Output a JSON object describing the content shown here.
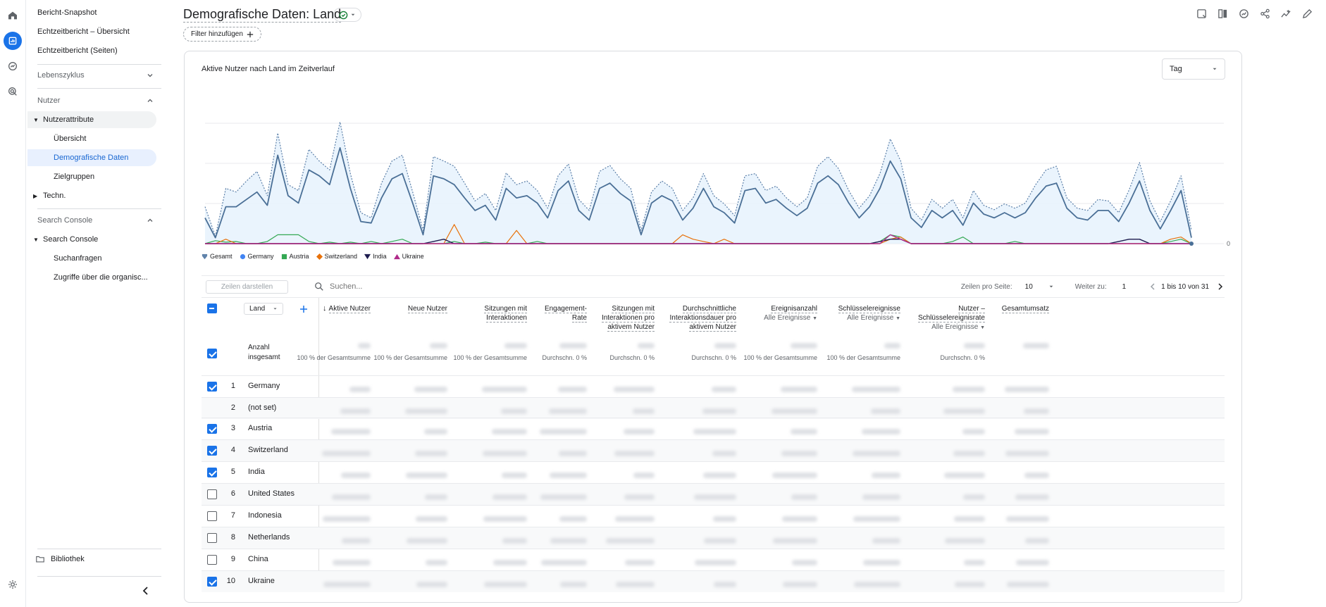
{
  "page": {
    "title": "Demografische Daten: Land",
    "filter_label": "Filter hinzufügen"
  },
  "rail": [
    {
      "icon": "home-icon"
    },
    {
      "icon": "reports-icon",
      "active": true
    },
    {
      "icon": "explore-icon"
    },
    {
      "icon": "advertising-icon"
    },
    {
      "icon": "settings-icon"
    }
  ],
  "sidebar": {
    "top_links": [
      "Bericht-Snapshot",
      "Echtzeitbericht – Übersicht",
      "Echtzeitbericht (Seiten)"
    ],
    "lifecycle": "Lebenszyklus",
    "users": "Nutzer",
    "user_attributes": "Nutzerattribute",
    "overview": "Übersicht",
    "demographics": "Demografische Daten",
    "audiences": "Zielgruppen",
    "tech": "Techn.",
    "search_console_section": "Search Console",
    "search_console": "Search Console",
    "queries": "Suchanfragen",
    "organic": "Zugriffe über die organisc...",
    "library": "Bibliothek"
  },
  "chart": {
    "title": "Aktive Nutzer nach Land im Zeitverlauf",
    "interval": "Tag",
    "y_zero_label": "0"
  },
  "chart_data": {
    "type": "line",
    "title": "Aktive Nutzer nach Land im Zeitverlauf",
    "note": "y-axis values are redacted in the screenshot; values are relative estimates",
    "series": [
      {
        "name": "Gesamt",
        "color": "#1a73e8"
      },
      {
        "name": "Germany",
        "color": "#4285f4"
      },
      {
        "name": "Austria",
        "color": "#34a853"
      },
      {
        "name": "Switzerland",
        "color": "#e8710a"
      },
      {
        "name": "India",
        "color": "#1e1c4f"
      },
      {
        "name": "Ukraine",
        "color": "#c5221f"
      }
    ],
    "gesamt": [
      50,
      10,
      75,
      70,
      85,
      98,
      65,
      150,
      80,
      72,
      128,
      112,
      100,
      165,
      95,
      42,
      35,
      82,
      112,
      120,
      70,
      18,
      118,
      112,
      105,
      82,
      58,
      68,
      45,
      96,
      80,
      85,
      72,
      48,
      92,
      108,
      60,
      45,
      98,
      106,
      88,
      75,
      18,
      70,
      85,
      75,
      45,
      62,
      95,
      65,
      54,
      38,
      92,
      95,
      72,
      78,
      62,
      50,
      62,
      105,
      118,
      102,
      72,
      48,
      65,
      95,
      142,
      112,
      48,
      32,
      60,
      48,
      60,
      35,
      72,
      52,
      46,
      54,
      48,
      55,
      80,
      100,
      105,
      62,
      48,
      45,
      60,
      58,
      42,
      73,
      110,
      58,
      30,
      58,
      92,
      18
    ],
    "germany": [
      35,
      8,
      50,
      50,
      60,
      70,
      52,
      120,
      65,
      55,
      100,
      92,
      80,
      130,
      75,
      30,
      28,
      62,
      88,
      95,
      55,
      12,
      92,
      88,
      80,
      62,
      45,
      52,
      32,
      75,
      62,
      65,
      55,
      35,
      72,
      85,
      45,
      32,
      75,
      82,
      68,
      58,
      12,
      55,
      65,
      58,
      32,
      48,
      75,
      50,
      42,
      28,
      72,
      75,
      55,
      60,
      48,
      38,
      48,
      82,
      92,
      80,
      55,
      35,
      50,
      75,
      112,
      88,
      35,
      22,
      45,
      35,
      45,
      25,
      55,
      40,
      35,
      42,
      35,
      42,
      62,
      78,
      82,
      48,
      35,
      32,
      45,
      45,
      30,
      55,
      85,
      45,
      20,
      45,
      72,
      8
    ],
    "austria": [
      0,
      4,
      2,
      3,
      0,
      0,
      3,
      12,
      12,
      12,
      3,
      0,
      2,
      0,
      2,
      0,
      3,
      0,
      3,
      6,
      0,
      0,
      0,
      0,
      3,
      0,
      0,
      2,
      0,
      0,
      0,
      0,
      3,
      0,
      0,
      0,
      0,
      0,
      0,
      0,
      0,
      0,
      0,
      0,
      0,
      0,
      0,
      0,
      0,
      0,
      0,
      0,
      0,
      0,
      0,
      0,
      0,
      0,
      0,
      0,
      0,
      0,
      0,
      0,
      0,
      3,
      12,
      9,
      0,
      0,
      0,
      0,
      3,
      9,
      0,
      0,
      0,
      0,
      3,
      0,
      0,
      0,
      0,
      0,
      0,
      0,
      0,
      0,
      0,
      0,
      0,
      0,
      0,
      3,
      6,
      0
    ],
    "switzerland": [
      0,
      0,
      6,
      0,
      0,
      0,
      0,
      0,
      0,
      0,
      0,
      0,
      0,
      0,
      0,
      0,
      0,
      0,
      0,
      0,
      0,
      0,
      0,
      0,
      26,
      0,
      0,
      0,
      0,
      0,
      18,
      0,
      0,
      0,
      0,
      0,
      0,
      0,
      0,
      0,
      0,
      0,
      0,
      0,
      0,
      0,
      12,
      6,
      3,
      0,
      6,
      0,
      0,
      0,
      0,
      0,
      0,
      0,
      0,
      0,
      0,
      0,
      0,
      0,
      0,
      0,
      6,
      9,
      0,
      0,
      0,
      0,
      0,
      0,
      0,
      0,
      0,
      0,
      0,
      0,
      0,
      0,
      0,
      0,
      0,
      0,
      0,
      0,
      0,
      0,
      0,
      0,
      0,
      6,
      9,
      0
    ],
    "india": [
      0,
      0,
      0,
      0,
      0,
      0,
      0,
      0,
      0,
      0,
      0,
      0,
      0,
      0,
      0,
      0,
      0,
      0,
      0,
      0,
      0,
      0,
      3,
      6,
      0,
      0,
      0,
      0,
      0,
      0,
      0,
      0,
      0,
      0,
      0,
      0,
      0,
      0,
      0,
      0,
      0,
      0,
      0,
      0,
      0,
      0,
      0,
      0,
      0,
      0,
      0,
      0,
      0,
      0,
      0,
      0,
      0,
      0,
      0,
      0,
      0,
      0,
      0,
      0,
      0,
      3,
      6,
      6,
      0,
      0,
      0,
      0,
      0,
      0,
      0,
      0,
      0,
      0,
      0,
      0,
      0,
      0,
      0,
      0,
      0,
      0,
      0,
      0,
      3,
      6,
      6,
      0,
      0,
      0,
      0,
      0
    ],
    "ukraine": [
      0,
      0,
      0,
      0,
      0,
      0,
      0,
      0,
      0,
      0,
      0,
      0,
      0,
      0,
      0,
      0,
      0,
      0,
      0,
      0,
      0,
      0,
      0,
      0,
      0,
      0,
      0,
      0,
      0,
      0,
      0,
      0,
      0,
      0,
      0,
      0,
      0,
      0,
      0,
      0,
      0,
      0,
      0,
      0,
      0,
      0,
      0,
      0,
      0,
      0,
      0,
      0,
      0,
      0,
      0,
      0,
      0,
      0,
      0,
      0,
      0,
      0,
      0,
      0,
      0,
      0,
      12,
      6,
      0,
      0,
      0,
      0,
      0,
      0,
      0,
      0,
      0,
      0,
      0,
      0,
      0,
      0,
      0,
      0,
      0,
      0,
      0,
      0,
      0,
      0,
      0,
      0,
      0,
      0,
      0,
      0
    ]
  },
  "legend": [
    "Gesamt",
    "Germany",
    "Austria",
    "Switzerland",
    "India",
    "Ukraine"
  ],
  "toolbar": {
    "plot_rows": "Zeilen darstellen",
    "search_placeholder": "Suchen...",
    "rows_per_page_label": "Zeilen pro Seite:",
    "rows_per_page": "10",
    "goto_label": "Weiter zu:",
    "goto_value": "1",
    "range": "1 bis 10 von 31"
  },
  "table": {
    "dimension": "Land",
    "total_label": "Anzahl insgesamt",
    "columns": [
      {
        "label": "Aktive Nutzer",
        "sub": "",
        "caption": "100 % der Gesamtsumme",
        "sorted": true
      },
      {
        "label": "Neue Nutzer",
        "sub": "",
        "caption": "100 % der Gesamtsumme"
      },
      {
        "label": "Sitzungen mit Interaktionen",
        "sub": "",
        "caption": "100 % der Gesamtsumme"
      },
      {
        "label": "Engagement-Rate",
        "sub": "",
        "caption": "Durchschn. 0 %"
      },
      {
        "label": "Sitzungen mit Interaktionen pro aktivem Nutzer",
        "sub": "",
        "caption": "Durchschn. 0 %"
      },
      {
        "label": "Durchschnittliche Interaktionsdauer pro aktivem Nutzer",
        "sub": "",
        "caption": "Durchschn. 0 %"
      },
      {
        "label": "Ereignisanzahl",
        "sub": "Alle Ereignisse",
        "caption": "100 % der Gesamtsumme"
      },
      {
        "label": "Schlüsselereignisse",
        "sub": "Alle Ereignisse",
        "caption": "100 % der Gesamtsumme"
      },
      {
        "label": "Nutzer – Schlüsselereignisrate",
        "sub": "Alle Ereignisse",
        "caption": "Durchschn. 0 %"
      },
      {
        "label": "Gesamtumsatz",
        "sub": "",
        "caption": ""
      }
    ],
    "rows": [
      {
        "rank": "1",
        "country": "Germany",
        "checked": true
      },
      {
        "rank": "2",
        "country": "(not set)",
        "checked": null
      },
      {
        "rank": "3",
        "country": "Austria",
        "checked": true
      },
      {
        "rank": "4",
        "country": "Switzerland",
        "checked": true
      },
      {
        "rank": "5",
        "country": "India",
        "checked": true
      },
      {
        "rank": "6",
        "country": "United States",
        "checked": false
      },
      {
        "rank": "7",
        "country": "Indonesia",
        "checked": false
      },
      {
        "rank": "8",
        "country": "Netherlands",
        "checked": false
      },
      {
        "rank": "9",
        "country": "China",
        "checked": false
      },
      {
        "rank": "10",
        "country": "Ukraine",
        "checked": true
      }
    ]
  }
}
